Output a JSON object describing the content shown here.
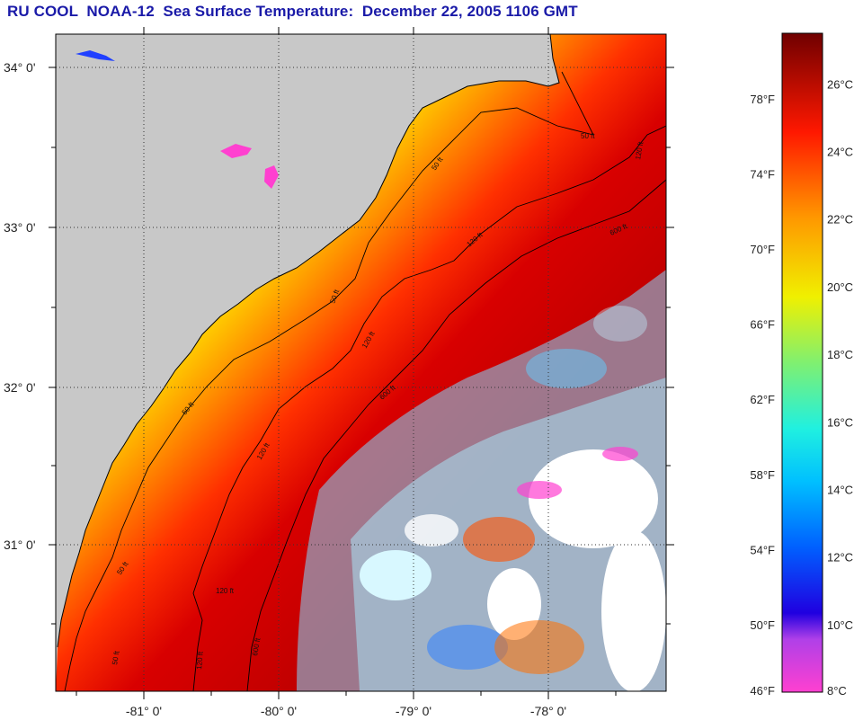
{
  "header": {
    "title": "RU COOL  NOAA-12  Sea Surface Temperature:  December 22, 2005 1106 GMT"
  },
  "map": {
    "lat_labels": [
      "34° 0'",
      "33° 0'",
      "32° 0'",
      "31° 0'"
    ],
    "lon_labels": [
      "-81° 0'",
      "-80° 0'",
      "-79° 0'",
      "-78° 0'"
    ],
    "contour_labels": [
      "50 ft",
      "50 ft",
      "50 ft",
      "50 ft",
      "50 ft",
      "50 ft",
      "120 ft",
      "120 ft",
      "120 ft",
      "120 ft",
      "120 ft",
      "120 ft",
      "600 ft",
      "600 ft",
      "600 ft"
    ],
    "colors": {
      "land": "#c8c8c8",
      "cloud": "#ffffff",
      "frame": "#000000",
      "grid": "#333333"
    }
  },
  "colorbar": {
    "fahrenheit_labels": [
      "78°F",
      "74°F",
      "70°F",
      "66°F",
      "62°F",
      "58°F",
      "54°F",
      "50°F",
      "46°F"
    ],
    "celsius_labels": [
      "26°C",
      "24°C",
      "22°C",
      "20°C",
      "18°C",
      "16°C",
      "14°C",
      "12°C",
      "10°C",
      "8°C"
    ],
    "scale_min_c": 8,
    "scale_max_c": 27.5
  }
}
